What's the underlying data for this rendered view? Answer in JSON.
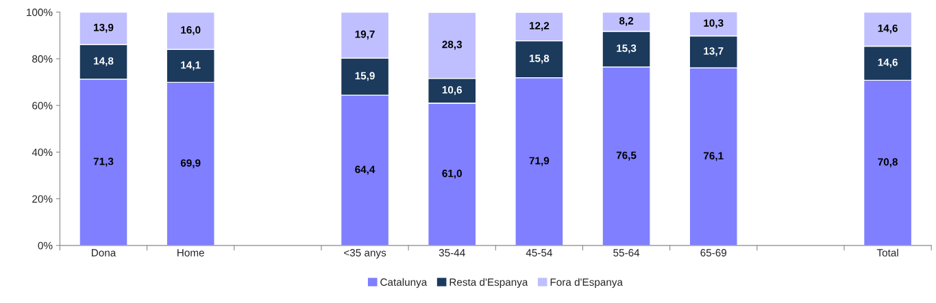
{
  "chart_data": {
    "type": "bar",
    "stacked": true,
    "categories": [
      "Dona",
      "Home",
      null,
      "<35 anys",
      "35-44",
      "45-54",
      "55-64",
      "65-69",
      null,
      "Total"
    ],
    "series": [
      {
        "name": "Catalunya",
        "color": "#7f7fff",
        "values": [
          71.3,
          69.9,
          null,
          64.4,
          61.0,
          71.9,
          76.5,
          76.1,
          null,
          70.8
        ],
        "value_labels": [
          "71,3",
          "69,9",
          null,
          "64,4",
          "61,0",
          "71,9",
          "76,5",
          "76,1",
          null,
          "70,8"
        ]
      },
      {
        "name": "Resta d'Espanya",
        "color": "#1b3a5c",
        "values": [
          14.8,
          14.1,
          null,
          15.9,
          10.6,
          15.8,
          15.3,
          13.7,
          null,
          14.6
        ],
        "value_labels": [
          "14,8",
          "14,1",
          null,
          "15,9",
          "10,6",
          "15,8",
          "15,3",
          "13,7",
          null,
          "14,6"
        ]
      },
      {
        "name": "Fora d'Espanya",
        "color": "#bfbfff",
        "values": [
          13.9,
          16.0,
          null,
          19.7,
          28.3,
          12.2,
          8.2,
          10.3,
          null,
          14.6
        ],
        "value_labels": [
          "13,9",
          "16,0",
          null,
          "19,7",
          "28,3",
          "12,2",
          "8,2",
          "10,3",
          null,
          "14,6"
        ]
      }
    ],
    "ylim": [
      0,
      100
    ],
    "yticks": [
      {
        "value": 0,
        "label": "0%"
      },
      {
        "value": 20,
        "label": "20%"
      },
      {
        "value": 40,
        "label": "40%"
      },
      {
        "value": 60,
        "label": "60%"
      },
      {
        "value": 80,
        "label": "80%"
      },
      {
        "value": 100,
        "label": "100%"
      }
    ],
    "grid": false,
    "legend": "bottom"
  }
}
